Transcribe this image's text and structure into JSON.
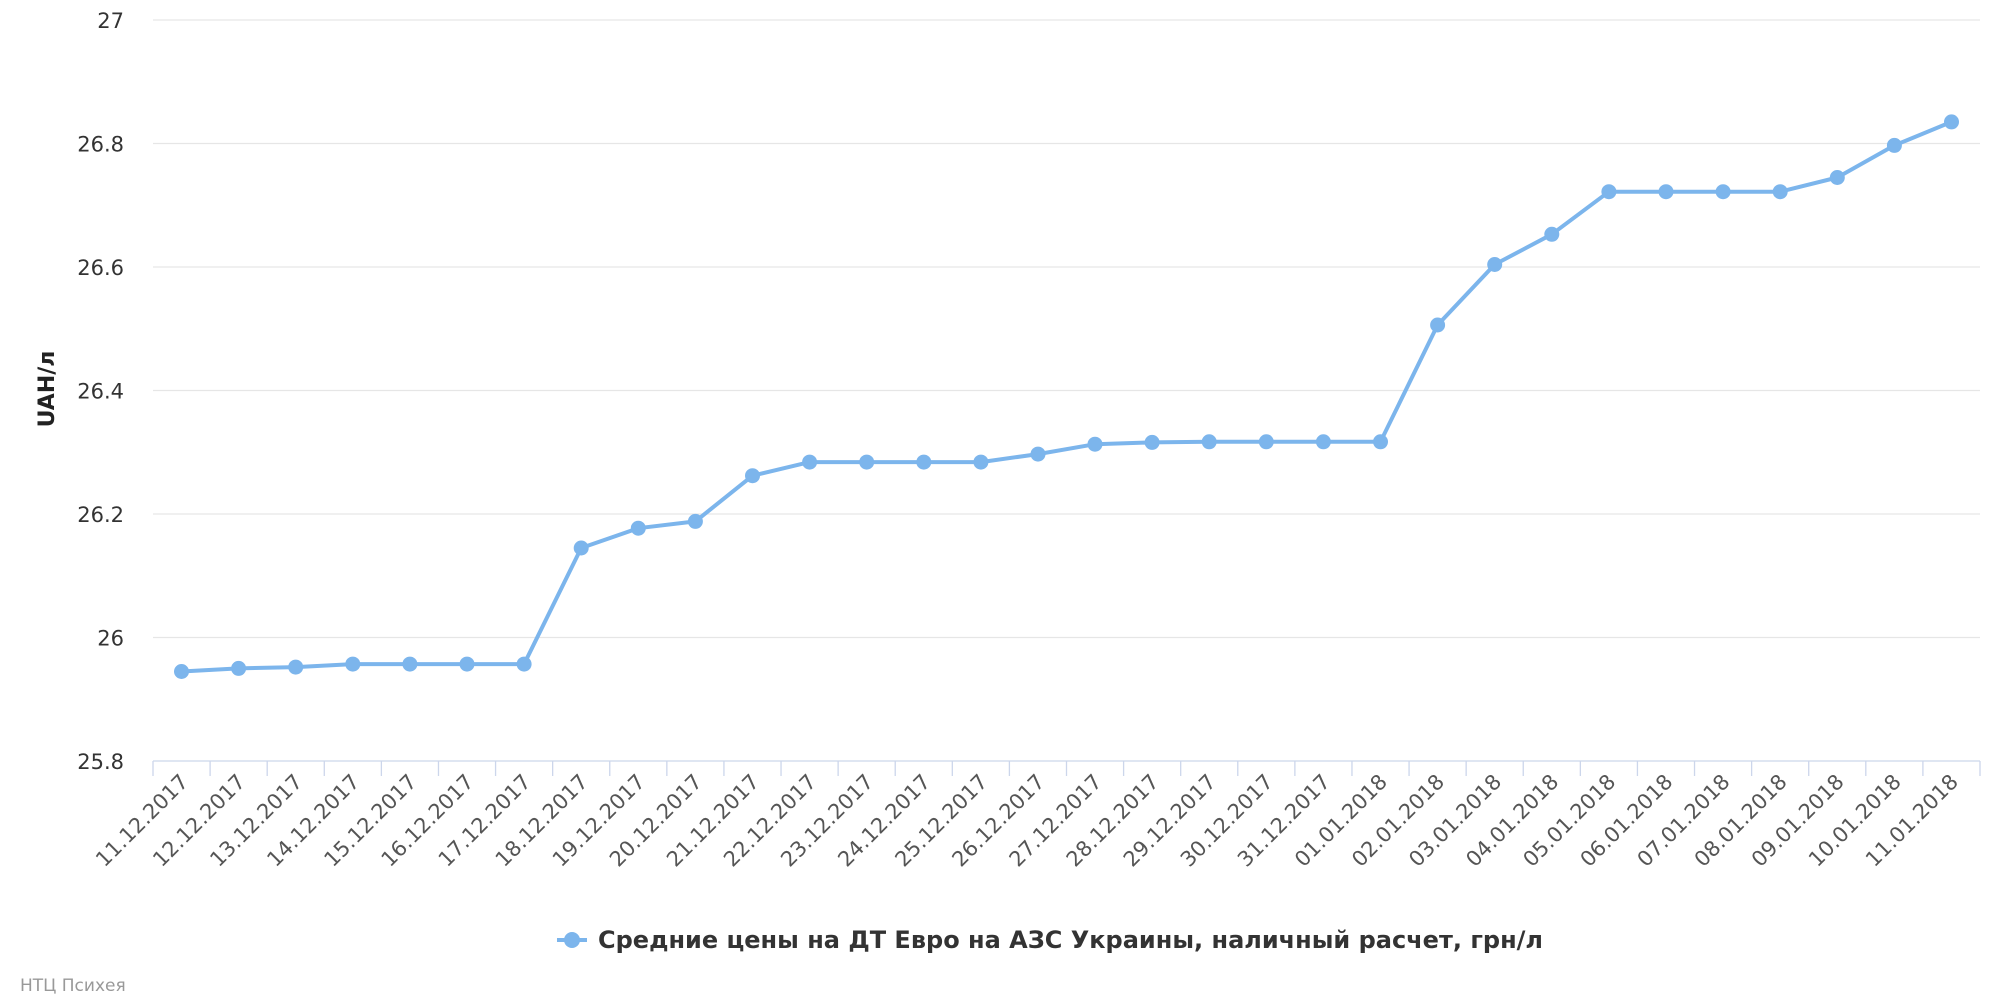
{
  "chart_data": {
    "type": "line",
    "title": "",
    "xlabel": "",
    "ylabel": "UAH/л",
    "ylim": [
      25.8,
      27
    ],
    "yticks": [
      "25.8",
      "26",
      "26.2",
      "26.4",
      "26.6",
      "26.8",
      "27"
    ],
    "grid": true,
    "legend_position": "bottom-center",
    "categories": [
      "11.12.2017",
      "12.12.2017",
      "13.12.2017",
      "14.12.2017",
      "15.12.2017",
      "16.12.2017",
      "17.12.2017",
      "18.12.2017",
      "19.12.2017",
      "20.12.2017",
      "21.12.2017",
      "22.12.2017",
      "23.12.2017",
      "24.12.2017",
      "25.12.2017",
      "26.12.2017",
      "27.12.2017",
      "28.12.2017",
      "29.12.2017",
      "30.12.2017",
      "31.12.2017",
      "01.01.2018",
      "02.01.2018",
      "03.01.2018",
      "04.01.2018",
      "05.01.2018",
      "06.01.2018",
      "07.01.2018",
      "08.01.2018",
      "09.01.2018",
      "10.01.2018",
      "11.01.2018"
    ],
    "series": [
      {
        "name": "Средние цены на ДТ Евро на АЗС Украины, наличный расчет, грн/л",
        "color": "#7cb5ec",
        "values": [
          25.945,
          25.95,
          25.952,
          25.957,
          25.957,
          25.957,
          25.957,
          26.145,
          26.177,
          26.188,
          26.262,
          26.284,
          26.284,
          26.284,
          26.284,
          26.297,
          26.313,
          26.316,
          26.317,
          26.317,
          26.317,
          26.317,
          26.506,
          26.604,
          26.653,
          26.722,
          26.722,
          26.722,
          26.722,
          26.745,
          26.797,
          26.835
        ]
      }
    ]
  },
  "credits": "НТЦ Психея"
}
